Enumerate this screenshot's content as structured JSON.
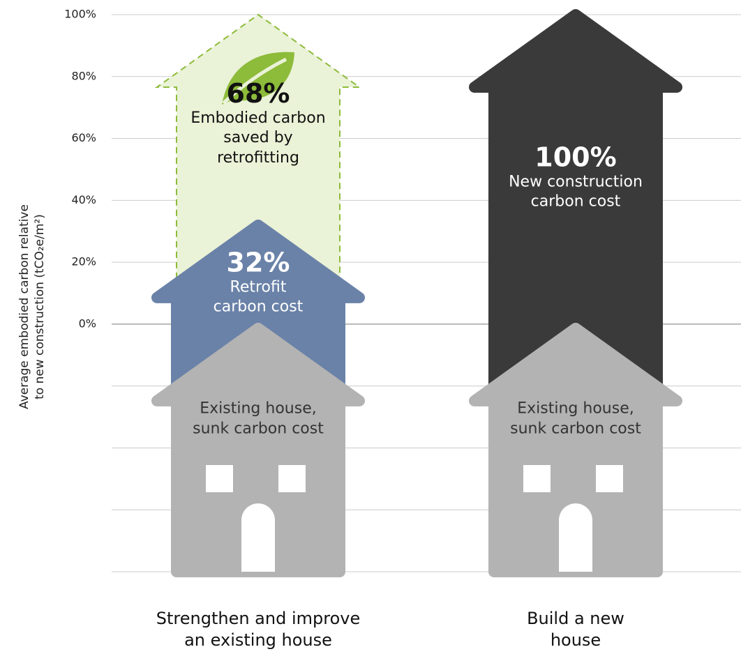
{
  "chart_data": {
    "type": "stacked-arrow",
    "y_label": "Average embodied carbon relative\nto new construction (tCO₂e/m²)",
    "categories": [
      "Strengthen and improve\nan existing house",
      "Build a new\nhouse"
    ],
    "annotations": [
      "Existing house,\nsunk carbon cost",
      "Existing house,\nsunk carbon cost"
    ],
    "series": [
      {
        "name": "Retrofit\ncarbon cost",
        "color": "#6a82a8",
        "text_color": "#ffffff",
        "values": [
          32,
          null
        ],
        "value_labels": [
          "32%",
          null
        ]
      },
      {
        "name": "Embodied carbon\nsaved by\nretrofitting",
        "color": "#eaf2d7",
        "border_color": "#8dbb3a",
        "border_style": "dashed",
        "text_color": "#111111",
        "values": [
          68,
          null
        ],
        "value_labels": [
          "68%",
          null
        ]
      },
      {
        "name": "New construction\ncarbon cost",
        "color": "#3a3a3a",
        "text_color": "#ffffff",
        "values": [
          null,
          100
        ],
        "value_labels": [
          null,
          "100%"
        ]
      }
    ],
    "house_color": "#b3b3b3",
    "ylim": [
      -80,
      100
    ],
    "yticks": [
      {
        "value": -80,
        "label": null
      },
      {
        "value": -60,
        "label": null
      },
      {
        "value": -40,
        "label": null
      },
      {
        "value": -20,
        "label": null
      },
      {
        "value": 0,
        "label": "0%"
      },
      {
        "value": 20,
        "label": "20%"
      },
      {
        "value": 40,
        "label": "40%"
      },
      {
        "value": 60,
        "label": "60%"
      },
      {
        "value": 80,
        "label": "80%"
      },
      {
        "value": 100,
        "label": "100%"
      }
    ],
    "grid": true
  }
}
